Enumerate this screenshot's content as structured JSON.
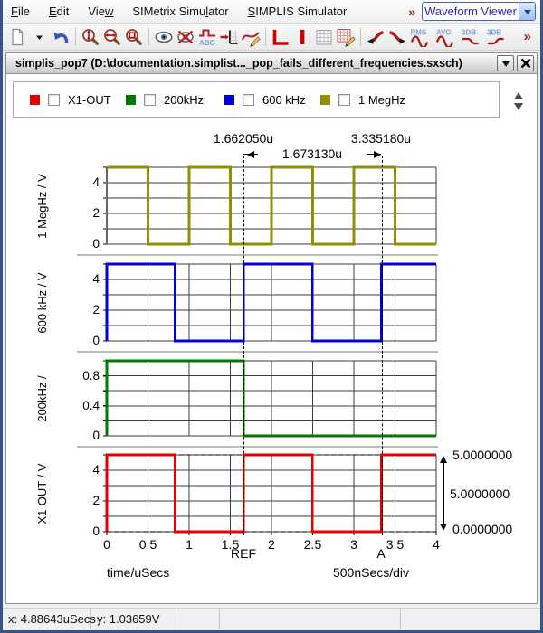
{
  "menu": {
    "items": [
      {
        "pre": "",
        "key": "F",
        "post": "ile"
      },
      {
        "pre": "",
        "key": "E",
        "post": "dit"
      },
      {
        "pre": "Vie",
        "key": "w",
        "post": ""
      },
      {
        "pre": "SIMetrix Simu",
        "key": "l",
        "post": "ator"
      },
      {
        "pre": "",
        "key": "S",
        "post": "IMPLIS Simulator"
      }
    ],
    "overflow": "»",
    "mode_selector": "Waveform Viewer"
  },
  "toolbar": {
    "overflow": "»",
    "badges": {
      "rms": "RMS",
      "avg": "AVG",
      "db3": "3DB"
    },
    "groups": [
      [
        "new-document",
        "dropdown",
        "undo"
      ],
      [
        "zoom-y",
        "zoom-x",
        "zoom-box"
      ],
      [
        "show-curve",
        "hide-curve",
        "label-curve",
        "new-axis",
        "edit-curve"
      ],
      [
        "new-graph",
        "new-grid",
        "grid",
        "edit-grid"
      ],
      [
        "next-curve",
        "prev-curve",
        "rms",
        "avg",
        "db3-lowpass",
        "db3-highpass"
      ]
    ]
  },
  "window": {
    "title": "simplis_pop7 (D:\\documentation.simplist..._pop_fails_different_frequencies.sxsch)"
  },
  "legend": {
    "items": [
      {
        "label": "X1-OUT",
        "color": "#e60000",
        "checked": false
      },
      {
        "label": "200kHz",
        "color": "#007a00",
        "checked": false
      },
      {
        "label": "600 kHz",
        "color": "#0000dd",
        "checked": false
      },
      {
        "label": "1 MegHz",
        "color": "#8f8f00",
        "checked": false
      }
    ]
  },
  "cursors": {
    "ref_label": "REF",
    "a_label": "A",
    "ref_x": 1.66205,
    "a_x": 3.33518,
    "ref_text": "1.662050u",
    "a_text": "3.335180u",
    "delta_text": "1.673130u",
    "y_top_text": "5.0000000",
    "y_delta_text": "5.0000000",
    "y_bottom_text": "0.0000000",
    "hlines": [
      5,
      0
    ]
  },
  "xaxis": {
    "min": 0,
    "max": 4,
    "ticks": [
      0,
      0.5,
      1,
      1.5,
      2,
      2.5,
      3,
      3.5,
      4
    ],
    "label": "time/uSecs",
    "div_label": "500nSecs/div"
  },
  "chart_data": [
    {
      "type": "line",
      "id": "meg1",
      "name": "1 MegHz",
      "ylabel": "1 MegHz / V",
      "color": "#8f8f00",
      "ylim": [
        0,
        5
      ],
      "ygrid": 1,
      "yticks": [
        0,
        2,
        4
      ],
      "points": [
        [
          0,
          5
        ],
        [
          0.5,
          5
        ],
        [
          0.5,
          0
        ],
        [
          1,
          0
        ],
        [
          1,
          5
        ],
        [
          1.5,
          5
        ],
        [
          1.5,
          0
        ],
        [
          2,
          0
        ],
        [
          2,
          5
        ],
        [
          2.5,
          5
        ],
        [
          2.5,
          0
        ],
        [
          3,
          0
        ],
        [
          3,
          5
        ],
        [
          3.5,
          5
        ],
        [
          3.5,
          0
        ],
        [
          4,
          0
        ]
      ]
    },
    {
      "type": "line",
      "id": "k600",
      "name": "600 kHz",
      "ylabel": "600 kHz / V",
      "color": "#0000dd",
      "ylim": [
        0,
        5
      ],
      "ygrid": 1,
      "yticks": [
        0,
        2,
        4
      ],
      "points": [
        [
          0,
          0
        ],
        [
          0,
          5
        ],
        [
          0.826,
          5
        ],
        [
          0.826,
          0
        ],
        [
          1.662,
          0
        ],
        [
          1.662,
          5
        ],
        [
          2.499,
          5
        ],
        [
          2.499,
          0
        ],
        [
          3.335,
          0
        ],
        [
          3.335,
          5
        ],
        [
          4,
          5
        ]
      ]
    },
    {
      "type": "line",
      "id": "k200",
      "name": "200kHz",
      "ylabel": "200kHz /",
      "color": "#007a00",
      "ylim": [
        0,
        1
      ],
      "ygrid": 0.2,
      "yticks": [
        0,
        0.4,
        0.8
      ],
      "points": [
        [
          0,
          0
        ],
        [
          0,
          1
        ],
        [
          1.662,
          1
        ],
        [
          1.662,
          0
        ],
        [
          4,
          0
        ]
      ]
    },
    {
      "type": "line",
      "id": "x1out",
      "name": "X1-OUT",
      "ylabel": "X1-OUT / V",
      "color": "#e60000",
      "ylim": [
        0,
        5
      ],
      "ygrid": 1,
      "yticks": [
        0,
        2,
        4
      ],
      "hcursors": [
        5,
        0
      ],
      "points": [
        [
          0,
          0
        ],
        [
          0,
          5
        ],
        [
          0.826,
          5
        ],
        [
          0.826,
          0
        ],
        [
          1.662,
          0
        ],
        [
          1.662,
          5
        ],
        [
          2.499,
          5
        ],
        [
          2.499,
          0
        ],
        [
          3.335,
          0
        ],
        [
          3.335,
          5
        ],
        [
          4,
          5
        ]
      ]
    }
  ],
  "status_bar": {
    "x": "x: 4.88643uSecs",
    "y": "y: 1.03659V"
  }
}
